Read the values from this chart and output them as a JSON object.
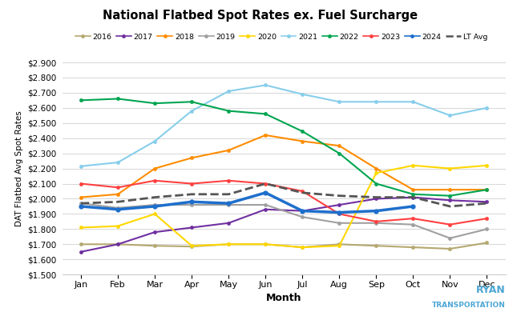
{
  "title": "National Flatbed Spot Rates ex. Fuel Surcharge",
  "xlabel": "Month",
  "ylabel": "DAT Flatbed Avg Spot Rates",
  "months": [
    "Jan",
    "Feb",
    "Mar",
    "Apr",
    "May",
    "Jun",
    "Jul",
    "Aug",
    "Sep",
    "Oct",
    "Nov",
    "Dec"
  ],
  "ylim": [
    1.5,
    2.9
  ],
  "yticks": [
    1.5,
    1.6,
    1.7,
    1.8,
    1.9,
    2.0,
    2.1,
    2.2,
    2.3,
    2.4,
    2.5,
    2.6,
    2.7,
    2.8,
    2.9
  ],
  "series": [
    {
      "name": "2016",
      "color": "#b5a870",
      "values": [
        1.7,
        1.7,
        1.69,
        1.685,
        1.7,
        1.7,
        1.68,
        1.7,
        1.69,
        1.68,
        1.67,
        1.71
      ],
      "linewidth": 1.5,
      "marker": "o",
      "markersize": 3.5,
      "linestyle": "-",
      "zorder": 2
    },
    {
      "name": "2017",
      "color": "#7030a0",
      "values": [
        1.65,
        1.7,
        1.78,
        1.81,
        1.84,
        1.93,
        1.92,
        1.96,
        2.0,
        2.01,
        1.99,
        1.98
      ],
      "linewidth": 1.5,
      "marker": "o",
      "markersize": 3.5,
      "linestyle": "-",
      "zorder": 2
    },
    {
      "name": "2018",
      "color": "#ff8c00",
      "values": [
        2.01,
        2.03,
        2.2,
        2.27,
        2.32,
        2.42,
        2.38,
        2.35,
        2.2,
        2.06,
        2.06,
        2.06
      ],
      "linewidth": 1.5,
      "marker": "o",
      "markersize": 3.5,
      "linestyle": "-",
      "zorder": 2
    },
    {
      "name": "2019",
      "color": "#a0a0a0",
      "values": [
        1.97,
        1.94,
        1.96,
        1.96,
        1.96,
        1.96,
        1.88,
        1.84,
        1.84,
        1.83,
        1.74,
        1.8
      ],
      "linewidth": 1.5,
      "marker": "o",
      "markersize": 3.5,
      "linestyle": "-",
      "zorder": 2
    },
    {
      "name": "2020",
      "color": "#ffd700",
      "values": [
        1.81,
        1.82,
        1.9,
        1.69,
        1.7,
        1.7,
        1.68,
        1.69,
        2.17,
        2.22,
        2.2,
        2.22
      ],
      "linewidth": 1.5,
      "marker": "o",
      "markersize": 3.5,
      "linestyle": "-",
      "zorder": 2
    },
    {
      "name": "2021",
      "color": "#87ceeb",
      "values": [
        2.215,
        2.24,
        2.38,
        2.58,
        2.71,
        2.75,
        2.69,
        2.64,
        2.64,
        2.64,
        2.55,
        2.6
      ],
      "linewidth": 1.5,
      "marker": "o",
      "markersize": 3.5,
      "linestyle": "-",
      "zorder": 2
    },
    {
      "name": "2022",
      "color": "#00a550",
      "values": [
        2.65,
        2.66,
        2.63,
        2.64,
        2.58,
        2.56,
        2.445,
        2.3,
        2.1,
        2.03,
        2.02,
        2.06
      ],
      "linewidth": 1.5,
      "marker": "o",
      "markersize": 3.5,
      "linestyle": "-",
      "zorder": 2
    },
    {
      "name": "2023",
      "color": "#ff4040",
      "values": [
        2.1,
        2.075,
        2.12,
        2.1,
        2.12,
        2.1,
        2.05,
        1.9,
        1.85,
        1.87,
        1.83,
        1.87
      ],
      "linewidth": 1.5,
      "marker": "o",
      "markersize": 3.5,
      "linestyle": "-",
      "zorder": 2
    },
    {
      "name": "2024",
      "color": "#1e6fcc",
      "values": [
        1.95,
        1.93,
        1.95,
        1.98,
        1.97,
        2.04,
        1.92,
        1.91,
        1.92,
        1.95,
        null,
        null
      ],
      "linewidth": 2.5,
      "marker": "o",
      "markersize": 4.5,
      "linestyle": "-",
      "zorder": 4
    },
    {
      "name": "LT Avg",
      "color": "#555555",
      "values": [
        1.97,
        1.98,
        2.01,
        2.03,
        2.03,
        2.1,
        2.04,
        2.02,
        2.01,
        2.01,
        1.95,
        1.97
      ],
      "linewidth": 2.0,
      "marker": null,
      "markersize": 0,
      "linestyle": "--",
      "zorder": 3
    }
  ]
}
